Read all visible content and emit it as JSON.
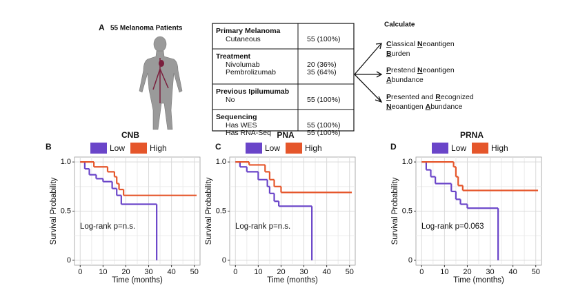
{
  "panel_a": {
    "label": "A",
    "title": "55 Melanoma Patients",
    "table": [
      {
        "header": "Primary Melanoma",
        "rows": [
          [
            "Cutaneous",
            "55 (100%)"
          ]
        ]
      },
      {
        "header": "Treatment",
        "rows": [
          [
            "Nivolumab",
            "20 (36%)"
          ],
          [
            "Pembrolizumab",
            "35 (64%)"
          ]
        ]
      },
      {
        "header": "Previous Ipilumumab",
        "rows": [
          [
            "No",
            "55 (100%)"
          ]
        ]
      },
      {
        "header": "Sequencing",
        "rows": [
          [
            "Has WES",
            "55 (100%)"
          ],
          [
            "Has RNA-Seq",
            "55 (100%)"
          ]
        ]
      }
    ],
    "calculate": {
      "title": "Calculate",
      "items": [
        [
          "Classical Neoantigen",
          "Burden"
        ],
        [
          "Prestend Neoantigen",
          "Abundance"
        ],
        [
          "Presented and Recognized",
          "Neoantigen Abundance"
        ]
      ]
    }
  },
  "chart_data": [
    {
      "type": "line",
      "panel": "B",
      "title": "CNB",
      "xlabel": "Time (months)",
      "ylabel": "Survival Probability",
      "annotation": "Log-rank p=n.s.",
      "xlim": [
        -2.5,
        52.5
      ],
      "ylim": [
        -0.05,
        1.05
      ],
      "xticks": [
        0,
        10,
        20,
        30,
        40,
        50
      ],
      "yticks": [
        0,
        0.5,
        {
          "value": 1,
          "label": "1.0"
        }
      ],
      "grid": true,
      "series": [
        {
          "name": "Low",
          "color": "#6a45c9",
          "x": [
            0,
            2,
            4,
            7,
            10,
            14,
            16,
            18,
            33.5
          ],
          "values": [
            1,
            0.93,
            0.87,
            0.83,
            0.8,
            0.73,
            0.66,
            0.57,
            0
          ]
        },
        {
          "name": "High",
          "color": "#e5562b",
          "x": [
            0,
            6,
            12,
            15,
            16,
            17,
            19,
            51
          ],
          "values": [
            1,
            0.95,
            0.9,
            0.85,
            0.78,
            0.72,
            0.66,
            0.66
          ]
        }
      ]
    },
    {
      "type": "line",
      "panel": "C",
      "title": "PNA",
      "xlabel": "Time (months)",
      "ylabel": "Survival Probability",
      "annotation": "Log-rank p=n.s.",
      "xlim": [
        -2.5,
        52.5
      ],
      "ylim": [
        -0.05,
        1.05
      ],
      "xticks": [
        0,
        10,
        20,
        30,
        40,
        50
      ],
      "yticks": [
        0,
        0.5,
        {
          "value": 1,
          "label": "1.0"
        }
      ],
      "grid": true,
      "series": [
        {
          "name": "Low",
          "color": "#6a45c9",
          "x": [
            0,
            2,
            5,
            10,
            14,
            15,
            17,
            19,
            33.5
          ],
          "values": [
            1,
            0.95,
            0.9,
            0.82,
            0.75,
            0.68,
            0.6,
            0.55,
            0
          ]
        },
        {
          "name": "High",
          "color": "#e5562b",
          "x": [
            0,
            6,
            13,
            15,
            17,
            20,
            51
          ],
          "values": [
            1,
            0.97,
            0.9,
            0.82,
            0.75,
            0.69,
            0.69
          ]
        }
      ]
    },
    {
      "type": "line",
      "panel": "D",
      "title": "PRNA",
      "xlabel": "Time (months)",
      "ylabel": "Survival Probability",
      "annotation": "Log-rank p=0.063",
      "xlim": [
        -2.5,
        52.5
      ],
      "ylim": [
        -0.05,
        1.05
      ],
      "xticks": [
        0,
        10,
        20,
        30,
        40,
        50
      ],
      "yticks": [
        0,
        0.5,
        {
          "value": 1,
          "label": "1.0"
        }
      ],
      "grid": true,
      "series": [
        {
          "name": "Low",
          "color": "#6a45c9",
          "x": [
            0,
            2,
            4,
            6,
            13,
            15,
            17,
            20,
            33.5
          ],
          "values": [
            1,
            0.92,
            0.85,
            0.78,
            0.7,
            0.62,
            0.57,
            0.53,
            0
          ]
        },
        {
          "name": "High",
          "color": "#e5562b",
          "x": [
            0,
            14,
            15,
            16,
            18,
            51
          ],
          "values": [
            1,
            0.95,
            0.85,
            0.76,
            0.71,
            0.71
          ]
        }
      ]
    }
  ]
}
